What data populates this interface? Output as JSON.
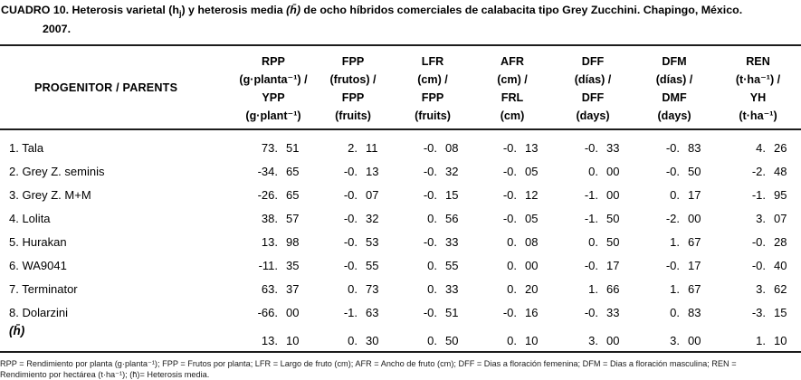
{
  "title": {
    "part1": "CUADRO 10. Heterosis varietal (h",
    "sub": "j",
    "part2": ") y heterosis media ",
    "hbar": "(h̄)",
    "part3": " de ocho híbridos comerciales de calabacita tipo Grey Zucchini. Chapingo, México.",
    "line2": "2007."
  },
  "table": {
    "row_header": "PROGENITOR / PARENTS",
    "columns": [
      {
        "id": "rpp",
        "lines": [
          "RPP",
          "(g·planta⁻¹) /",
          "YPP",
          "(g·plant⁻¹)"
        ]
      },
      {
        "id": "fpp",
        "lines": [
          "FPP",
          "(frutos) /",
          "FPP",
          "(fruits)"
        ]
      },
      {
        "id": "lfr",
        "lines": [
          "LFR",
          "(cm) /",
          "FPP",
          "(fruits)"
        ]
      },
      {
        "id": "afr",
        "lines": [
          "AFR",
          "(cm) /",
          "FRL",
          "(cm)"
        ]
      },
      {
        "id": "dff",
        "lines": [
          "DFF",
          "(días) /",
          "DFF",
          "(days)"
        ]
      },
      {
        "id": "dfm",
        "lines": [
          "DFM",
          "(días) /",
          "DMF",
          "(days)"
        ]
      },
      {
        "id": "ren",
        "lines": [
          "REN",
          "(t·ha⁻¹) /",
          "YH",
          "(t·ha⁻¹)"
        ]
      }
    ],
    "rows": [
      {
        "label": "1. Tala",
        "is_mean": false,
        "values": [
          [
            "73.",
            "51"
          ],
          [
            "2.",
            "11"
          ],
          [
            "-0.",
            "08"
          ],
          [
            "-0.",
            "13"
          ],
          [
            "-0.",
            "33"
          ],
          [
            "-0.",
            "83"
          ],
          [
            "4.",
            "26"
          ]
        ]
      },
      {
        "label": "2. Grey Z. seminis",
        "is_mean": false,
        "values": [
          [
            "-34.",
            "65"
          ],
          [
            "-0.",
            "13"
          ],
          [
            "-0.",
            "32"
          ],
          [
            "-0.",
            "05"
          ],
          [
            "0.",
            "00"
          ],
          [
            "-0.",
            "50"
          ],
          [
            "-2.",
            "48"
          ]
        ]
      },
      {
        "label": "3. Grey Z. M+M",
        "is_mean": false,
        "values": [
          [
            "-26.",
            "65"
          ],
          [
            "-0.",
            "07"
          ],
          [
            "-0.",
            "15"
          ],
          [
            "-0.",
            "12"
          ],
          [
            "-1.",
            "00"
          ],
          [
            "0.",
            "17"
          ],
          [
            "-1.",
            "95"
          ]
        ]
      },
      {
        "label": "4. Lolita",
        "is_mean": false,
        "values": [
          [
            "38.",
            "57"
          ],
          [
            "-0.",
            "32"
          ],
          [
            "0.",
            "56"
          ],
          [
            "-0.",
            "05"
          ],
          [
            "-1.",
            "50"
          ],
          [
            "-2.",
            "00"
          ],
          [
            "3.",
            "07"
          ]
        ]
      },
      {
        "label": "5. Hurakan",
        "is_mean": false,
        "values": [
          [
            "13.",
            "98"
          ],
          [
            "-0.",
            "53"
          ],
          [
            "-0.",
            "33"
          ],
          [
            "0.",
            "08"
          ],
          [
            "0.",
            "50"
          ],
          [
            "1.",
            "67"
          ],
          [
            "-0.",
            "28"
          ]
        ]
      },
      {
        "label": "6. WA9041",
        "is_mean": false,
        "values": [
          [
            "-11.",
            "35"
          ],
          [
            "-0.",
            "55"
          ],
          [
            "0.",
            "55"
          ],
          [
            "0.",
            "00"
          ],
          [
            "-0.",
            "17"
          ],
          [
            "-0.",
            "17"
          ],
          [
            "-0.",
            "40"
          ]
        ]
      },
      {
        "label": "7. Terminator",
        "is_mean": false,
        "values": [
          [
            "63.",
            "37"
          ],
          [
            "0.",
            "73"
          ],
          [
            "0.",
            "33"
          ],
          [
            "0.",
            "20"
          ],
          [
            "1.",
            "66"
          ],
          [
            "1.",
            "67"
          ],
          [
            "3.",
            "62"
          ]
        ]
      },
      {
        "label": "8. Dolarzini",
        "is_mean": false,
        "values": [
          [
            "-66.",
            "00"
          ],
          [
            "-1.",
            "63"
          ],
          [
            "-0.",
            "51"
          ],
          [
            "-0.",
            "16"
          ],
          [
            "-0.",
            "33"
          ],
          [
            "0.",
            "83"
          ],
          [
            "-3.",
            "15"
          ]
        ]
      },
      {
        "label": "(h̄)",
        "is_mean": true,
        "values": [
          [
            "13.",
            "10"
          ],
          [
            "0.",
            "30"
          ],
          [
            "0.",
            "50"
          ],
          [
            "0.",
            "10"
          ],
          [
            "3.",
            "00"
          ],
          [
            "3.",
            "00"
          ],
          [
            "1.",
            "10"
          ]
        ]
      }
    ]
  },
  "footnote": {
    "line1": "RPP = Rendimiento por planta (g·planta⁻¹); FPP = Frutos por planta; LFR = Largo de fruto (cm); AFR = Ancho de fruto (cm); DFF = Dias a floración femenina; DFM = Dias a floración masculina; REN =",
    "line2": "Rendimiento por hectárea (t·ha⁻¹); (h̄)= Heterosis media."
  }
}
